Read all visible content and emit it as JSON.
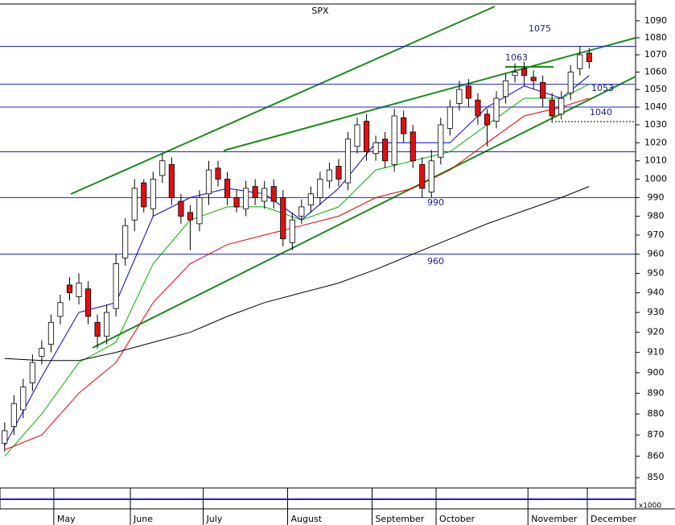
{
  "chart_data": {
    "type": "candlestick",
    "title": "SPX",
    "log_y": true,
    "ylim": [
      846,
      1100
    ],
    "xlim": [
      -0.5,
      68
    ],
    "yticks": [
      850,
      860,
      870,
      880,
      890,
      900,
      910,
      920,
      930,
      940,
      950,
      960,
      970,
      980,
      990,
      1000,
      1010,
      1020,
      1030,
      1040,
      1050,
      1060,
      1070,
      1080,
      1090
    ],
    "xticks": [
      {
        "value": 5.3,
        "label": "May"
      },
      {
        "value": 13.55,
        "label": "June"
      },
      {
        "value": 21.4,
        "label": "July"
      },
      {
        "value": 30.5,
        "label": "August"
      },
      {
        "value": 39.6,
        "label": "September"
      },
      {
        "value": 46.5,
        "label": "October"
      },
      {
        "value": 56.4,
        "label": "November"
      },
      {
        "value": 62.8,
        "label": "December"
      }
    ],
    "x": [
      0,
      1,
      2,
      3,
      4,
      5,
      6,
      7,
      8,
      9,
      10,
      11,
      12,
      13,
      14,
      15,
      16,
      17,
      18,
      19,
      20,
      21,
      22,
      23,
      24,
      25,
      26,
      27,
      28,
      29,
      30,
      31,
      32,
      33,
      34,
      35,
      36,
      37,
      38,
      39,
      40,
      41,
      42,
      43,
      44,
      45,
      46,
      47,
      48,
      49,
      50,
      51,
      52,
      53,
      54,
      55,
      56,
      57,
      58,
      59,
      60,
      61,
      62,
      63
    ],
    "open": [
      866,
      874,
      882,
      895,
      908,
      914,
      928,
      944,
      938,
      942,
      925,
      918,
      932,
      958,
      978,
      998,
      984,
      1002,
      1008,
      988,
      982,
      976,
      992,
      1006,
      1000,
      990,
      984,
      996,
      988,
      996,
      990,
      966,
      980,
      986,
      990,
      999,
      1007,
      998,
      1018,
      1032,
      1014,
      1022,
      1008,
      1034,
      1026,
      1008,
      993,
      1012,
      1028,
      1042,
      1052,
      1044,
      1036,
      1032,
      1046,
      1058,
      1062,
      1057,
      1054,
      1044,
      1036,
      1048,
      1062,
      1071
    ],
    "high": [
      876,
      889,
      897,
      909,
      916,
      929,
      939,
      948,
      950,
      946,
      929,
      934,
      960,
      979,
      1000,
      1000,
      1004,
      1014,
      1012,
      992,
      986,
      994,
      1010,
      1010,
      1004,
      994,
      999,
      1000,
      999,
      1000,
      994,
      982,
      989,
      996,
      1004,
      1009,
      1011,
      1026,
      1034,
      1036,
      1024,
      1026,
      1039,
      1038,
      1030,
      1012,
      1016,
      1034,
      1044,
      1055,
      1056,
      1048,
      1039,
      1049,
      1059,
      1065,
      1066,
      1061,
      1058,
      1048,
      1049,
      1064,
      1075,
      1074
    ],
    "low": [
      862,
      870,
      878,
      891,
      904,
      910,
      924,
      936,
      934,
      924,
      912,
      914,
      928,
      954,
      972,
      982,
      980,
      998,
      986,
      976,
      962,
      972,
      986,
      996,
      986,
      982,
      980,
      986,
      984,
      984,
      964,
      962,
      976,
      982,
      986,
      995,
      996,
      994,
      1014,
      1010,
      1010,
      1006,
      1004,
      1020,
      1006,
      990,
      990,
      1008,
      1024,
      1038,
      1040,
      1030,
      1018,
      1028,
      1042,
      1054,
      1052,
      1050,
      1040,
      1031,
      1033,
      1044,
      1058,
      1062
    ],
    "close": [
      872,
      885,
      893,
      905,
      912,
      925,
      935,
      940,
      945,
      928,
      918,
      930,
      955,
      975,
      995,
      985,
      1000,
      1010,
      990,
      980,
      978,
      990,
      1005,
      1000,
      990,
      985,
      995,
      990,
      995,
      988,
      968,
      978,
      985,
      992,
      1000,
      1005,
      1000,
      1022,
      1030,
      1015,
      1020,
      1010,
      1035,
      1025,
      1010,
      995,
      1010,
      1030,
      1040,
      1050,
      1045,
      1035,
      1030,
      1045,
      1055,
      1060,
      1058,
      1055,
      1045,
      1035,
      1045,
      1060,
      1070,
      1066
    ],
    "up_color": "#ffffff",
    "down_color": "#e01010",
    "lines": [
      {
        "color": "#0000cc",
        "x": [
          0,
          4,
          8,
          12,
          16,
          20,
          24,
          28,
          32,
          36,
          40,
          44,
          48,
          52,
          56,
          60,
          63
        ],
        "values": [
          865,
          898,
          930,
          935,
          980,
          990,
          995,
          992,
          978,
          995,
          1020,
          1020,
          1020,
          1040,
          1052,
          1045,
          1058
        ]
      },
      {
        "color": "#00b000",
        "x": [
          0,
          4,
          8,
          12,
          16,
          20,
          24,
          28,
          32,
          36,
          40,
          44,
          48,
          52,
          56,
          60,
          63
        ],
        "values": [
          860,
          880,
          905,
          915,
          955,
          978,
          985,
          985,
          978,
          985,
          1005,
          1010,
          1015,
          1030,
          1045,
          1045,
          1053
        ]
      },
      {
        "color": "#e00000",
        "x": [
          0,
          4,
          8,
          12,
          16,
          20,
          24,
          28,
          32,
          36,
          40,
          44,
          48,
          52,
          56,
          60,
          63
        ],
        "values": [
          863,
          870,
          890,
          905,
          935,
          955,
          965,
          970,
          975,
          980,
          990,
          995,
          1005,
          1020,
          1035,
          1040,
          1045
        ]
      },
      {
        "color": "#000000",
        "x": [
          0,
          4,
          8,
          12,
          16,
          20,
          24,
          28,
          32,
          36,
          40,
          44,
          48,
          52,
          56,
          60,
          63
        ],
        "values": [
          907,
          906,
          906,
          910,
          915,
          920,
          928,
          935,
          940,
          945,
          952,
          960,
          968,
          976,
          983,
          990,
          996
        ]
      }
    ],
    "levels": [
      {
        "value": 1075,
        "label": "1075"
      },
      {
        "value": 1053,
        "label": "1053"
      },
      {
        "value": 1040,
        "label": "1040"
      },
      1015,
      {
        "value": 990,
        "label": "990"
      },
      {
        "value": 960,
        "label": "960"
      }
    ],
    "annotations": [
      {
        "value": 1063,
        "label": "1063"
      }
    ],
    "panel_label": "x1000"
  }
}
